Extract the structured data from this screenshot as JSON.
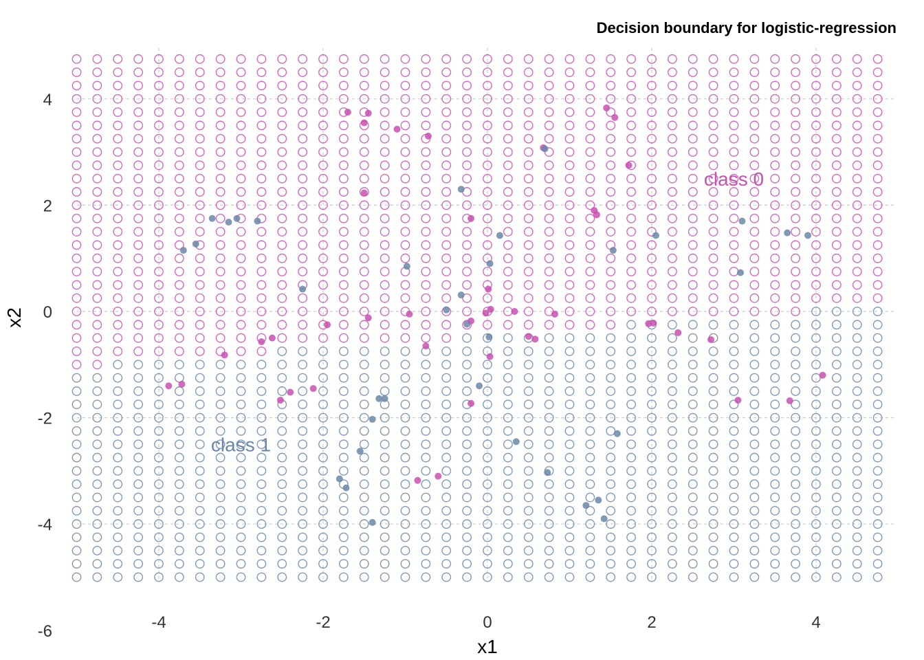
{
  "chart_data": {
    "type": "scatter",
    "title": "Decision boundary for logistic-regression",
    "xlabel": "x1",
    "ylabel": "x2",
    "xlim": [
      -5.5,
      5.2
    ],
    "ylim": [
      -6,
      5.2
    ],
    "x_ticks": [
      -4,
      -2,
      0,
      2,
      4
    ],
    "y_ticks": [
      4,
      2,
      0,
      -2,
      -4,
      -6
    ],
    "grid": true,
    "legend": "none",
    "colors": {
      "class_0": "#c94fb0",
      "class_1": "#6a87a8"
    },
    "region_labels": [
      {
        "text": "class 0",
        "x": 3.0,
        "y": 2.5,
        "class": 0
      },
      {
        "text": "class 1",
        "x": -3.0,
        "y": -2.5,
        "class": 1
      }
    ],
    "grid_points": {
      "x_start": -5.0,
      "x_end": 4.9,
      "x_step": 0.25,
      "y_start": -5.0,
      "y_end": 4.9,
      "y_step": 0.25,
      "boundary": {
        "intercept": -0.45,
        "slope": 0.12
      },
      "rule": "class 0 if x2 > intercept + slope * x1, else class 1"
    },
    "series": [
      {
        "name": "class 0",
        "points": [
          [
            -1.7,
            3.75
          ],
          [
            -1.45,
            3.73
          ],
          [
            -1.5,
            3.55
          ],
          [
            -1.1,
            3.43
          ],
          [
            -0.72,
            3.3
          ],
          [
            -1.5,
            2.23
          ],
          [
            -0.2,
            1.75
          ],
          [
            0.68,
            3.08
          ],
          [
            1.45,
            3.83
          ],
          [
            1.55,
            3.65
          ],
          [
            1.72,
            2.75
          ],
          [
            1.3,
            1.9
          ],
          [
            1.33,
            1.82
          ],
          [
            0.01,
            0.42
          ],
          [
            -1.45,
            -0.12
          ],
          [
            -0.95,
            -0.05
          ],
          [
            -0.2,
            -0.18
          ],
          [
            -0.02,
            -0.03
          ],
          [
            0.04,
            0.04
          ],
          [
            0.33,
            0.0
          ],
          [
            0.5,
            -0.47
          ],
          [
            0.58,
            -0.52
          ],
          [
            0.82,
            -0.05
          ],
          [
            1.96,
            -0.23
          ],
          [
            2.02,
            -0.22
          ],
          [
            2.32,
            -0.4
          ],
          [
            2.72,
            -0.53
          ],
          [
            -1.95,
            -0.25
          ],
          [
            -2.62,
            -0.5
          ],
          [
            -2.75,
            -0.57
          ],
          [
            -3.2,
            -0.82
          ],
          [
            -0.75,
            -0.65
          ],
          [
            0.03,
            -0.85
          ],
          [
            -3.88,
            -1.4
          ],
          [
            -3.72,
            -1.37
          ],
          [
            -2.4,
            -1.52
          ],
          [
            -2.12,
            -1.45
          ],
          [
            -2.52,
            -1.67
          ],
          [
            -0.2,
            -1.73
          ],
          [
            3.05,
            -1.67
          ],
          [
            3.68,
            -1.68
          ],
          [
            4.08,
            -1.2
          ],
          [
            -0.6,
            -3.1
          ],
          [
            -0.85,
            -3.18
          ]
        ]
      },
      {
        "name": "class 1",
        "points": [
          [
            -3.35,
            1.75
          ],
          [
            -3.15,
            1.68
          ],
          [
            -3.05,
            1.75
          ],
          [
            -2.8,
            1.7
          ],
          [
            -3.7,
            1.15
          ],
          [
            -3.55,
            1.27
          ],
          [
            -2.25,
            0.42
          ],
          [
            -0.98,
            0.85
          ],
          [
            -0.32,
            2.3
          ],
          [
            0.7,
            3.06
          ],
          [
            0.15,
            1.43
          ],
          [
            0.03,
            0.9
          ],
          [
            2.05,
            1.43
          ],
          [
            1.53,
            1.15
          ],
          [
            3.1,
            1.7
          ],
          [
            3.65,
            1.48
          ],
          [
            3.9,
            1.43
          ],
          [
            3.08,
            0.73
          ],
          [
            -0.32,
            0.31
          ],
          [
            -0.5,
            0.03
          ],
          [
            -0.25,
            -0.24
          ],
          [
            0.02,
            -0.48
          ],
          [
            -1.25,
            -1.64
          ],
          [
            -1.32,
            -1.64
          ],
          [
            -0.1,
            -1.4
          ],
          [
            -1.4,
            -2.03
          ],
          [
            0.35,
            -2.45
          ],
          [
            1.58,
            -2.3
          ],
          [
            -1.55,
            -2.63
          ],
          [
            0.73,
            -3.03
          ],
          [
            -1.8,
            -3.15
          ],
          [
            -1.72,
            -3.32
          ],
          [
            1.35,
            -3.55
          ],
          [
            1.2,
            -3.65
          ],
          [
            1.42,
            -3.9
          ],
          [
            -1.4,
            -3.97
          ]
        ]
      }
    ]
  }
}
